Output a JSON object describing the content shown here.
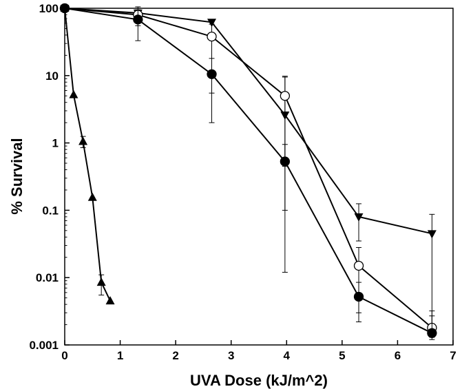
{
  "chart_data": {
    "type": "scatter",
    "title": "",
    "xlabel": "UVA Dose (kJ/m^2)",
    "ylabel": "% Survival",
    "xlim": [
      0,
      7
    ],
    "ylim": [
      0.001,
      100
    ],
    "yscale": "log",
    "grid": false,
    "x_ticks": [
      {
        "value": 0,
        "label": "0"
      },
      {
        "value": 1,
        "label": "1"
      },
      {
        "value": 2,
        "label": "2"
      },
      {
        "value": 3,
        "label": "3"
      },
      {
        "value": 4,
        "label": "4"
      },
      {
        "value": 5,
        "label": "5"
      },
      {
        "value": 6,
        "label": "6"
      },
      {
        "value": 7,
        "label": "7"
      }
    ],
    "y_ticks": [
      {
        "value": 100,
        "label": "100"
      },
      {
        "value": 10,
        "label": "10"
      },
      {
        "value": 1,
        "label": "1"
      },
      {
        "value": 0.1,
        "label": "0.1"
      },
      {
        "value": 0.01,
        "label": "0.01"
      },
      {
        "value": 0.001,
        "label": "0.001"
      }
    ],
    "series": [
      {
        "marker": "triangle-up",
        "filled": true,
        "x": [
          0,
          0.16,
          0.33,
          0.5,
          0.66,
          0.82
        ],
        "y": [
          100,
          5.2,
          1.05,
          0.155,
          0.0085,
          0.0045
        ],
        "err": [
          null,
          null,
          [
            0.85,
            1.25
          ],
          null,
          [
            0.0055,
            0.011
          ],
          null
        ]
      },
      {
        "marker": "triangle-down",
        "filled": true,
        "x": [
          0,
          1.32,
          2.65,
          3.97,
          5.3,
          6.62
        ],
        "y": [
          100,
          85,
          62,
          2.6,
          0.08,
          0.045
        ],
        "err": [
          null,
          [
            55,
            105
          ],
          null,
          [
            0.45,
            9.5
          ],
          [
            0.035,
            0.125
          ],
          [
            0.002,
            0.087
          ]
        ]
      },
      {
        "marker": "circle",
        "filled": false,
        "x": [
          0,
          1.32,
          2.65,
          3.97,
          5.3,
          6.62
        ],
        "y": [
          100,
          80,
          38,
          5.0,
          0.015,
          0.0018
        ],
        "err": [
          null,
          null,
          [
            2.0,
            58
          ],
          [
            0.012,
            9.8
          ],
          [
            0.003,
            0.028
          ],
          [
            0.0012,
            0.0027
          ]
        ]
      },
      {
        "marker": "circle",
        "filled": true,
        "x": [
          0,
          1.32,
          2.65,
          3.97,
          5.3,
          6.62
        ],
        "y": [
          100,
          68,
          10.5,
          0.53,
          0.0052,
          0.0015
        ],
        "err": [
          null,
          [
            33,
            95
          ],
          [
            5.5,
            18
          ],
          [
            0.1,
            0.95
          ],
          [
            0.0022,
            0.0085
          ],
          [
            0.0013,
            0.0032
          ]
        ]
      }
    ]
  }
}
